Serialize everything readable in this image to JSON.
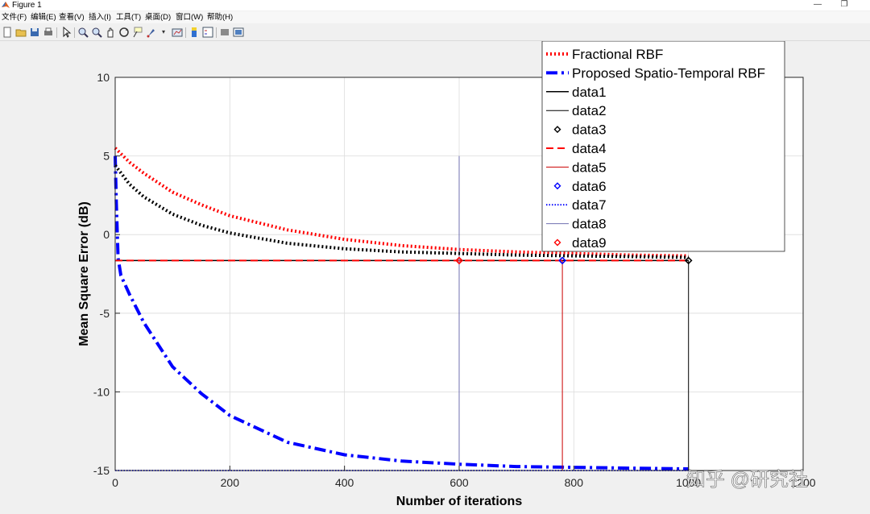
{
  "window": {
    "title": "Figure 1",
    "minimize_glyph": "—",
    "restore_glyph": "❐"
  },
  "menu": [
    "文件(F)",
    "编辑(E)",
    "查看(V)",
    "插入(I)",
    "工具(T)",
    "桌面(D)",
    "窗口(W)",
    "帮助(H)"
  ],
  "toolbar": {
    "icons": [
      "new-figure-icon",
      "open-file-icon",
      "save-icon",
      "print-icon",
      "pointer-icon",
      "zoom-in-icon",
      "zoom-out-icon",
      "pan-icon",
      "rotate-3d-icon",
      "data-cursor-icon",
      "brush-icon",
      "link-plot-icon",
      "colorbar-icon",
      "legend-icon",
      "hide-plot-tools-icon",
      "show-plot-tools-icon"
    ]
  },
  "watermark": "知乎 @研究社",
  "colors": {
    "red": "#ff0000",
    "blue": "#0000ff",
    "black": "#000000",
    "slate": "#7070b0",
    "darkred": "#cc0000"
  },
  "chart_data": {
    "type": "line",
    "xlabel": "Number of iterations",
    "ylabel": "Mean Square Error (dB)",
    "xlim": [
      0,
      1200
    ],
    "ylim": [
      -15,
      10
    ],
    "xticks": [
      0,
      200,
      400,
      600,
      800,
      1000,
      1200
    ],
    "xtick_labels": [
      "0",
      "200",
      "400",
      "600",
      "800",
      "1000",
      "1200"
    ],
    "yticks": [
      -15,
      -10,
      -5,
      0,
      5,
      10
    ],
    "ytick_labels": [
      "-15",
      "-10",
      "-5",
      "0",
      "5",
      "10"
    ],
    "grid": true,
    "legend_position": "top-right",
    "series": [
      {
        "name": "Fractional RBF",
        "style": "dotted-thick",
        "color": "#ff0000",
        "x": [
          0,
          25,
          50,
          100,
          150,
          200,
          300,
          400,
          500,
          600,
          700,
          800,
          900,
          1000
        ],
        "y": [
          5.5,
          4.6,
          3.9,
          2.7,
          1.9,
          1.2,
          0.3,
          -0.3,
          -0.7,
          -0.95,
          -1.1,
          -1.2,
          -1.3,
          -1.35
        ]
      },
      {
        "name": "Proposed Spatio-Temporal RBF",
        "style": "dashdot-thick",
        "color": "#0000ff",
        "x": [
          0,
          2,
          5,
          10,
          25,
          50,
          100,
          150,
          200,
          300,
          400,
          500,
          600,
          700,
          800,
          900,
          1000
        ],
        "y": [
          5.0,
          2.0,
          -1.5,
          -2.6,
          -3.8,
          -5.6,
          -8.4,
          -10.1,
          -11.5,
          -13.2,
          -14.0,
          -14.4,
          -14.6,
          -14.75,
          -14.8,
          -14.85,
          -14.9
        ]
      },
      {
        "name": "data1",
        "style": "solid",
        "color": "#000000",
        "x": [
          0,
          1000
        ],
        "y": [
          -1.65,
          -1.65
        ]
      },
      {
        "name": "data2",
        "style": "solid-thin",
        "color": "#000000",
        "x": [
          1000,
          1000
        ],
        "y": [
          -15,
          -1.65
        ]
      },
      {
        "name": "data3",
        "style": "marker-diamond",
        "color": "#000000",
        "x": [
          1000
        ],
        "y": [
          -1.65
        ]
      },
      {
        "name": "data4",
        "style": "dashed",
        "color": "#ff0000",
        "x": [
          0,
          1000
        ],
        "y": [
          -1.65,
          -1.65
        ]
      },
      {
        "name": "data5",
        "style": "solid-thin",
        "color": "#cc0000",
        "x": [
          780,
          780
        ],
        "y": [
          -15,
          -1.65
        ]
      },
      {
        "name": "data6",
        "style": "marker-diamond",
        "color": "#0000ff",
        "x": [
          780
        ],
        "y": [
          -1.65
        ]
      },
      {
        "name": "data7",
        "style": "dotted",
        "color": "#0000ff",
        "x": [
          0,
          1000
        ],
        "y": [
          -15,
          -15
        ]
      },
      {
        "name": "data8",
        "style": "solid-thin",
        "color": "#7070b0",
        "x": [
          600,
          600
        ],
        "y": [
          -15,
          5
        ]
      },
      {
        "name": "data9",
        "style": "marker-diamond",
        "color": "#ff0000",
        "x": [
          600
        ],
        "y": [
          -1.65
        ]
      },
      {
        "name": "",
        "style": "dotted-thick",
        "color": "#000000",
        "x": [
          0,
          25,
          50,
          100,
          150,
          200,
          300,
          400,
          500,
          600,
          700,
          800,
          900,
          1000
        ],
        "y": [
          4.4,
          3.2,
          2.4,
          1.3,
          0.6,
          0.1,
          -0.55,
          -0.9,
          -1.1,
          -1.2,
          -1.3,
          -1.35,
          -1.4,
          -1.45
        ]
      }
    ]
  }
}
